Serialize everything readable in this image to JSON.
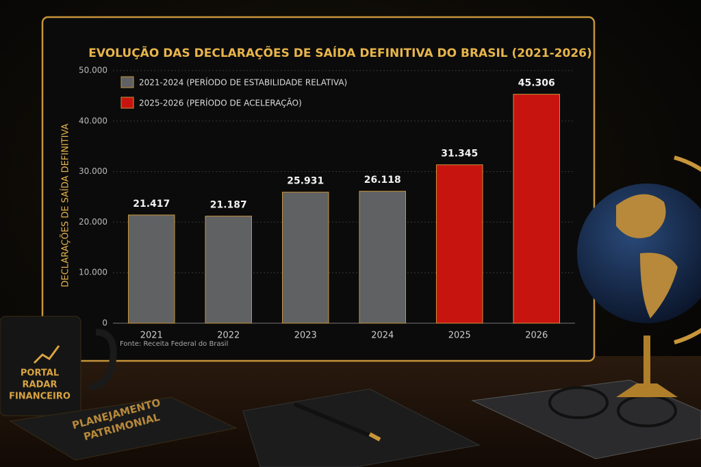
{
  "chart_data": {
    "type": "bar",
    "title": "EVOLUÇÃO DAS DECLARAÇÕES DE SAÍDA DEFINITIVA DO BRASIL (2021-2026)",
    "y_label": "DECLARAÇÕES DE SAÍDA DEFINITIVA",
    "source": "Fonte: Receita Federal do Brasil",
    "categories": [
      "2021",
      "2022",
      "2023",
      "2024",
      "2025",
      "2026"
    ],
    "series": [
      {
        "name": "2021-2024 (PERÍODO DE ESTABILIDADE RELATIVA)",
        "color": "#5f6163",
        "values": [
          21417,
          21187,
          25931,
          26118,
          null,
          null
        ],
        "value_labels": [
          "21.417",
          "21.187",
          "25.931",
          "26.118",
          null,
          null
        ]
      },
      {
        "name": "2025-2026 (PERÍODO DE ACELERAÇÃO)",
        "color": "#c8140f",
        "values": [
          null,
          null,
          null,
          null,
          31345,
          45306
        ],
        "value_labels": [
          null,
          null,
          null,
          null,
          "31.345",
          "45.306"
        ]
      }
    ],
    "ylim": [
      0,
      50000
    ],
    "yticks": [
      0,
      {
        "value": 10000,
        "label": "10.000"
      },
      {
        "value": 20000,
        "label": "20.000"
      },
      {
        "value": 30000,
        "label": "30.000"
      },
      {
        "value": 40000,
        "label": "40.000"
      },
      {
        "value": 50000,
        "label": "50.000"
      }
    ],
    "grid": true
  },
  "scene": {
    "mug_text": [
      "PORTAL",
      "RADAR",
      "FINANCEIRO"
    ],
    "book_text": [
      "PLANEJAMENTO",
      "PATRIMONIAL"
    ]
  }
}
